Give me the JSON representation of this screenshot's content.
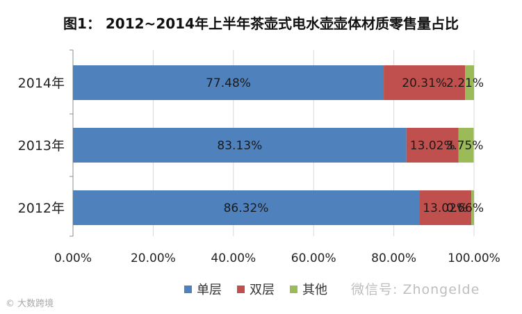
{
  "chart_data": {
    "type": "bar",
    "orientation": "horizontal",
    "stacked": true,
    "title": "图1：  2012~2014年上半年茶壶式电水壶壶体材质零售量占比",
    "categories": [
      "2014年",
      "2013年",
      "2012年"
    ],
    "series": [
      {
        "name": "单层",
        "color": "#4f81bd",
        "values": [
          77.48,
          83.13,
          86.32
        ],
        "labels": [
          "77.48%",
          "83.13%",
          "86.32%"
        ]
      },
      {
        "name": "双层",
        "color": "#c0504d",
        "values": [
          20.31,
          13.02,
          13.02
        ],
        "labels": [
          "20.31%",
          "13.02%",
          "13.02%"
        ]
      },
      {
        "name": "其他",
        "color": "#9bbb59",
        "values": [
          2.21,
          3.75,
          0.66
        ],
        "labels": [
          "2.21%",
          "3.75%",
          "0.66%"
        ]
      }
    ],
    "xlim": [
      0,
      100
    ],
    "xticks": [
      "0.00%",
      "20.00%",
      "40.00%",
      "60.00%",
      "80.00%",
      "100.00%"
    ],
    "legend_position": "bottom"
  },
  "watermarks": {
    "left": "© 大数跨境",
    "right": "微信号: ZhongeIde"
  }
}
